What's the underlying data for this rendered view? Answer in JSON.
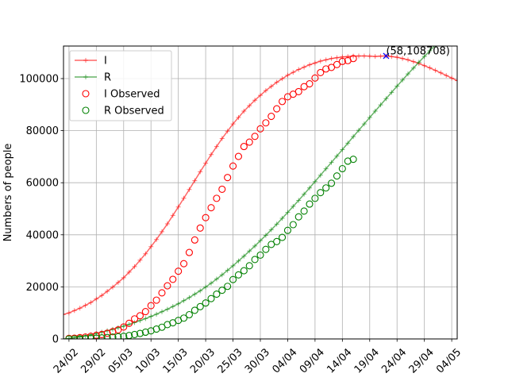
{
  "chart_data": {
    "type": "line",
    "title": "",
    "xlabel": "",
    "ylabel": "Numbers of people",
    "xlim": [
      -1,
      71
    ],
    "ylim": [
      0,
      112500
    ],
    "grid": true,
    "legend_position": "top-left",
    "x_tick_values": [
      0,
      5,
      10,
      15,
      20,
      25,
      30,
      35,
      40,
      45,
      50,
      55,
      60,
      65,
      70
    ],
    "x_tick_labels": [
      "24/02",
      "29/02",
      "05/03",
      "10/03",
      "15/03",
      "20/03",
      "25/03",
      "30/03",
      "04/04",
      "09/04",
      "14/04",
      "19/04",
      "24/04",
      "29/04",
      "04/05"
    ],
    "y_ticks": [
      0,
      20000,
      40000,
      60000,
      80000,
      100000
    ],
    "y_tick_labels": [
      "0",
      "20000",
      "40000",
      "60000",
      "80000",
      "100000"
    ],
    "colors": {
      "I": "#ff0000",
      "R": "#008000",
      "peak": "#0000ff"
    },
    "series": [
      {
        "name": "I",
        "style": "line-plus",
        "x": [
          -1,
          0,
          2,
          4,
          6,
          8,
          10,
          12,
          14,
          16,
          18,
          20,
          22,
          24,
          26,
          28,
          30,
          32,
          34,
          36,
          38,
          40,
          42,
          44,
          46,
          48,
          50,
          52,
          54,
          56,
          58,
          60,
          62,
          64,
          66,
          68,
          70,
          71
        ],
        "y": [
          9400,
          10000,
          11800,
          14000,
          16700,
          19900,
          23500,
          27800,
          32700,
          38200,
          44200,
          50700,
          57400,
          64200,
          70800,
          77000,
          82600,
          87500,
          91700,
          95400,
          98600,
          101300,
          103500,
          105300,
          106700,
          107700,
          108300,
          108650,
          108708,
          108500,
          108708,
          108200,
          107200,
          105800,
          104100,
          102200,
          100200,
          99200
        ]
      },
      {
        "name": "R",
        "style": "line-plus",
        "x": [
          -1,
          0,
          2,
          4,
          6,
          8,
          10,
          12,
          14,
          16,
          18,
          20,
          22,
          24,
          26,
          28,
          30,
          32,
          34,
          36,
          38,
          40,
          42,
          44,
          46,
          48,
          50,
          52,
          54,
          56,
          58,
          60,
          62,
          64,
          66,
          68,
          70,
          71
        ],
        "y": [
          0,
          150,
          800,
          1600,
          2600,
          3700,
          4900,
          6300,
          7800,
          9500,
          11400,
          13500,
          15900,
          18500,
          21400,
          24600,
          28100,
          31800,
          35700,
          39800,
          44100,
          48600,
          53200,
          58000,
          62900,
          67800,
          72700,
          77700,
          82600,
          87500,
          92300,
          97100,
          101800,
          106300,
          110700,
          115000,
          119100,
          121100
        ]
      },
      {
        "name": "I Observed",
        "style": "circle",
        "x": [
          0,
          1,
          2,
          3,
          4,
          5,
          6,
          7,
          8,
          9,
          10,
          11,
          12,
          13,
          14,
          15,
          16,
          17,
          18,
          19,
          20,
          21,
          22,
          23,
          24,
          25,
          26,
          27,
          28,
          29,
          30,
          31,
          32,
          33,
          34,
          35,
          36,
          37,
          38,
          39,
          40,
          41,
          42,
          43,
          44,
          45,
          46,
          47,
          48,
          49,
          50,
          51,
          52
        ],
        "y": [
          200,
          300,
          500,
          700,
          1000,
          1400,
          1700,
          2200,
          2800,
          3500,
          4600,
          6000,
          7700,
          8900,
          10500,
          12800,
          14900,
          17700,
          20400,
          22900,
          26000,
          28900,
          33200,
          38000,
          42600,
          46600,
          50400,
          54000,
          57500,
          62000,
          66400,
          70100,
          73900,
          75600,
          77800,
          80700,
          83000,
          85500,
          88400,
          91200,
          93000,
          94000,
          95000,
          96900,
          98000,
          100200,
          102300,
          103700,
          104300,
          105400,
          106600,
          106900,
          107700
        ]
      },
      {
        "name": "R Observed",
        "style": "circle",
        "x": [
          0,
          1,
          2,
          3,
          4,
          5,
          6,
          7,
          8,
          9,
          10,
          11,
          12,
          13,
          14,
          15,
          16,
          17,
          18,
          19,
          20,
          21,
          22,
          23,
          24,
          25,
          26,
          27,
          28,
          29,
          30,
          31,
          32,
          33,
          34,
          35,
          36,
          37,
          38,
          39,
          40,
          41,
          42,
          43,
          44,
          45,
          46,
          47,
          48,
          49,
          50,
          51,
          52
        ],
        "y": [
          0,
          0,
          50,
          100,
          200,
          300,
          400,
          550,
          700,
          850,
          1000,
          1300,
          1700,
          2100,
          2600,
          3100,
          3800,
          4500,
          5500,
          6200,
          7100,
          8000,
          9300,
          11000,
          12400,
          13800,
          15500,
          17200,
          18700,
          20200,
          22800,
          24600,
          26200,
          28100,
          30500,
          32200,
          34400,
          36300,
          37400,
          39000,
          41700,
          43900,
          46900,
          49100,
          51800,
          54000,
          56200,
          58000,
          59800,
          62600,
          65400,
          68300,
          69000
        ]
      }
    ],
    "annotations": [
      {
        "x": 58,
        "y": 108708,
        "text": "(58,108708)",
        "marker": "x"
      }
    ]
  }
}
